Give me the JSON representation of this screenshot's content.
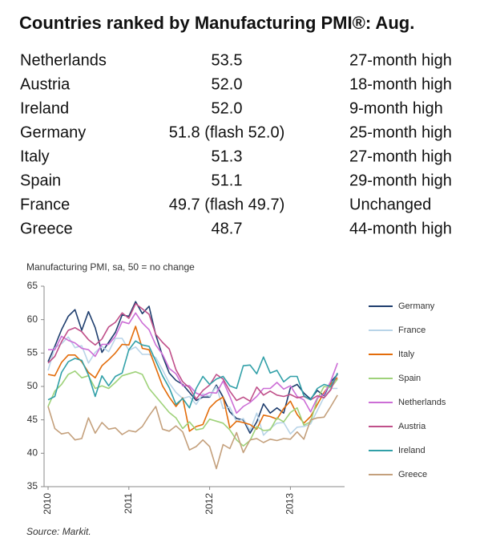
{
  "title": "Countries ranked by Manufacturing PMI®: Aug.",
  "table": {
    "rows": [
      [
        "Netherlands",
        "53.5",
        "27-month high"
      ],
      [
        "Austria",
        "52.0",
        "18-month high"
      ],
      [
        "Ireland",
        "52.0",
        "9-month high"
      ],
      [
        "Germany",
        "51.8 (flash 52.0)",
        "25-month high"
      ],
      [
        "Italy",
        "51.3",
        "27-month high"
      ],
      [
        "Spain",
        "51.1",
        "29-month high"
      ],
      [
        "France",
        "49.7 (flash 49.7)",
        "Unchanged"
      ],
      [
        "Greece",
        "48.7",
        "44-month high"
      ]
    ]
  },
  "chart_data": {
    "type": "line",
    "subtitle": "Manufacturing PMI, sa, 50 = no change",
    "source": "Source: Markit.",
    "categories": [
      "2010",
      null,
      null,
      null,
      null,
      null,
      null,
      null,
      null,
      null,
      null,
      null,
      "2011",
      null,
      null,
      null,
      null,
      null,
      null,
      null,
      null,
      null,
      null,
      null,
      "2012",
      null,
      null,
      null,
      null,
      null,
      null,
      null,
      null,
      null,
      null,
      null,
      "2013",
      null,
      null,
      null,
      null,
      null,
      null,
      null
    ],
    "ylim": [
      35,
      65
    ],
    "yticks": [
      35,
      40,
      45,
      50,
      55,
      60,
      65
    ],
    "grid": false,
    "legend": "right",
    "series": [
      {
        "name": "Germany",
        "color": "#1f3e6e",
        "values": [
          53.7,
          56,
          58.5,
          60.5,
          61.5,
          58.4,
          61.2,
          58.8,
          55.1,
          56.6,
          58.1,
          60.7,
          60.5,
          62.7,
          60.9,
          62.0,
          57.7,
          54.6,
          52.0,
          50.9,
          50.3,
          49.1,
          47.9,
          48.4,
          48.4,
          50.2,
          48.4,
          46.2,
          45.2,
          45.0,
          43.0,
          44.7,
          47.4,
          46.0,
          46.8,
          46.0,
          49.8,
          50.3,
          49.0,
          48.1,
          49.4,
          48.6,
          50.7,
          51.8
        ]
      },
      {
        "name": "France",
        "color": "#b8d4e8",
        "values": [
          52.4,
          55.8,
          56.4,
          57.4,
          55.8,
          56.1,
          53.5,
          55.1,
          56.0,
          55.2,
          57.2,
          57.2,
          55.4,
          55.9,
          54.8,
          54.8,
          54.3,
          52.5,
          50.5,
          49.1,
          48.2,
          48.5,
          47.3,
          48.9,
          48.5,
          50.0,
          46.7,
          46.9,
          44.7,
          45.2,
          43.4,
          46.0,
          42.7,
          43.7,
          44.5,
          44.6,
          42.9,
          43.9,
          44.0,
          44.4,
          46.4,
          48.4,
          49.7,
          49.7
        ]
      },
      {
        "name": "Italy",
        "color": "#e36c0a",
        "values": [
          51.8,
          51.6,
          53.6,
          54.7,
          54.7,
          53.7,
          52.1,
          51.3,
          53.1,
          54.0,
          55.0,
          56.3,
          56.2,
          59.0,
          55.7,
          55.5,
          52.8,
          50.1,
          48.4,
          47.0,
          48.3,
          43.3,
          44.0,
          44.3,
          46.8,
          47.8,
          48.4,
          43.8,
          44.8,
          44.6,
          44.3,
          43.6,
          45.7,
          45.5,
          45.1,
          46.7,
          47.8,
          45.8,
          44.5,
          45.5,
          47.3,
          49.1,
          50.4,
          51.3
        ]
      },
      {
        "name": "Spain",
        "color": "#9fd27a",
        "values": [
          47.0,
          49.3,
          50.3,
          51.8,
          52.3,
          51.3,
          51.6,
          49.7,
          50.1,
          49.7,
          50.6,
          51.6,
          51.9,
          52.2,
          51.8,
          49.7,
          48.5,
          47.3,
          46.1,
          45.3,
          43.7,
          44.7,
          43.5,
          43.7,
          45.1,
          44.8,
          44.5,
          43.5,
          42.0,
          41.1,
          41.9,
          44.0,
          43.4,
          43.5,
          45.3,
          44.7,
          46.1,
          46.8,
          44.2,
          44.7,
          48.1,
          50.0,
          49.8,
          51.1
        ]
      },
      {
        "name": "Netherlands",
        "color": "#cc6ed6",
        "values": [
          55.5,
          55.5,
          57.5,
          56.9,
          56.5,
          55.7,
          55.5,
          54.5,
          56.3,
          56.3,
          57.5,
          59.7,
          59.4,
          61.0,
          59.5,
          58.5,
          56.2,
          54.8,
          52.7,
          51.9,
          50.1,
          50.1,
          49.0,
          48.6,
          49.1,
          49.0,
          50.8,
          48.5,
          46.0,
          47.0,
          47.6,
          48.5,
          49.7,
          49.7,
          50.6,
          49.6,
          50.1,
          48.5,
          48.0,
          46.2,
          48.3,
          48.8,
          50.8,
          53.5
        ]
      },
      {
        "name": "Austria",
        "color": "#c0508a",
        "values": [
          53.5,
          54.5,
          56.7,
          58.4,
          58.8,
          58.2,
          57.0,
          56.2,
          57.1,
          58.9,
          59.6,
          61.0,
          60.2,
          62.4,
          61.6,
          60.8,
          57.8,
          56.6,
          55.6,
          52.5,
          50.7,
          49.8,
          48.1,
          49.4,
          50.2,
          51.8,
          51.1,
          49.3,
          47.9,
          48.4,
          47.8,
          49.9,
          48.7,
          49.3,
          48.7,
          48.5,
          48.8,
          48.3,
          48.5,
          48.0,
          48.6,
          48.3,
          49.5,
          52.0
        ]
      },
      {
        "name": "Ireland",
        "color": "#31a0a8",
        "values": [
          48.0,
          48.5,
          52.1,
          53.7,
          54.2,
          53.9,
          51.7,
          48.5,
          51.6,
          50.1,
          51.5,
          52.0,
          55.5,
          56.8,
          56.2,
          56.0,
          53.8,
          51.6,
          49.8,
          47.3,
          48.2,
          46.8,
          49.7,
          51.5,
          50.3,
          51.1,
          51.5,
          50.1,
          49.7,
          53.1,
          53.2,
          51.9,
          54.4,
          52.0,
          52.4,
          50.7,
          51.5,
          51.5,
          48.6,
          48.0,
          49.7,
          50.3,
          50.0,
          52.0
        ]
      },
      {
        "name": "Greece",
        "color": "#c4a07c",
        "values": [
          47.0,
          43.7,
          42.9,
          43.1,
          42.0,
          42.2,
          45.3,
          43.0,
          44.6,
          43.6,
          43.8,
          42.8,
          43.4,
          43.2,
          44.0,
          45.6,
          47.0,
          43.6,
          43.3,
          44.1,
          43.2,
          40.5,
          41.0,
          42.0,
          41.0,
          37.7,
          41.3,
          40.7,
          43.1,
          40.1,
          42.0,
          42.2,
          41.6,
          42.1,
          41.9,
          42.2,
          42.1,
          43.2,
          42.1,
          45.0,
          45.3,
          45.4,
          47.0,
          48.7
        ]
      }
    ]
  }
}
